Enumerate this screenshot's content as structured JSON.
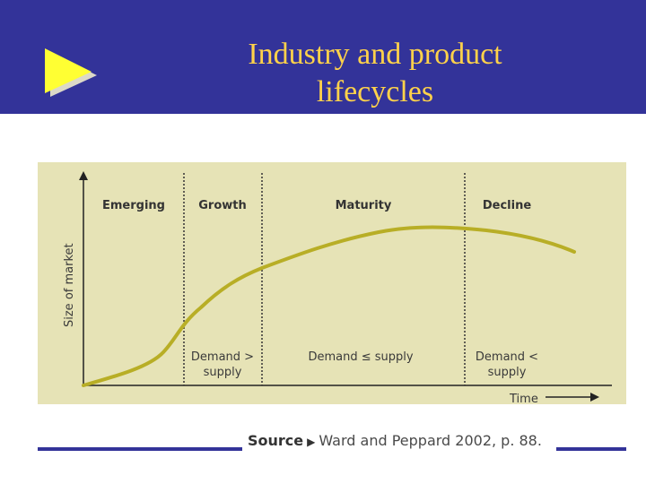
{
  "slide": {
    "title_line1": "Industry and product",
    "title_line2": "lifecycles"
  },
  "figure": {
    "y_axis_label": "Size of market",
    "x_axis_label": "Time",
    "stages": [
      {
        "name": "Emerging",
        "note_line1": "",
        "note_line2": ""
      },
      {
        "name": "Growth",
        "note_line1": "Demand >",
        "note_line2": "supply"
      },
      {
        "name": "Maturity",
        "note_line1": "Demand ≤ supply",
        "note_line2": ""
      },
      {
        "name": "Decline",
        "note_line1": "Demand <",
        "note_line2": "supply"
      }
    ]
  },
  "source": {
    "label": "Source",
    "marker": "▶",
    "citation": "Ward and Peppard 2002, p. 88."
  },
  "colors": {
    "header_bg": "#333399",
    "title": "#ffd24a",
    "figure_bg": "#e6e3b6",
    "curve": "#b8ae26"
  }
}
